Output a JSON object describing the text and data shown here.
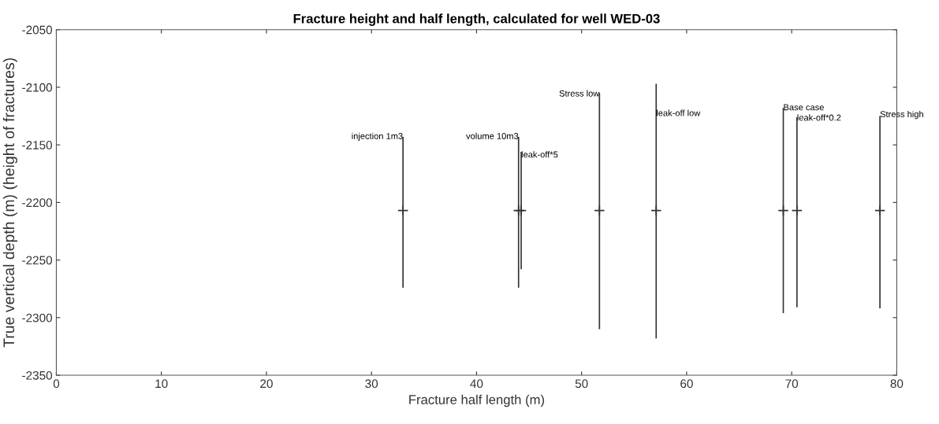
{
  "chart_data": {
    "type": "scatter",
    "title": "Fracture height and half length, calculated for well WED-03",
    "xlabel": "Fracture half length (m)",
    "ylabel": "True vertical depth (m) (height of fractures)",
    "x": [
      33.0,
      44.0,
      44.25,
      51.7,
      57.1,
      69.2,
      70.5,
      78.4
    ],
    "series": [
      {
        "color": "#333333",
        "values": [
          -2207,
          -2207,
          -2207,
          -2207,
          -2207,
          -2207,
          -2207,
          -2207
        ],
        "errors": [
          [
            -2274,
            -2143
          ],
          [
            -2274,
            -2143
          ],
          [
            -2258,
            -2156
          ],
          [
            -2310,
            -2105
          ],
          [
            -2318,
            -2097
          ],
          [
            -2296,
            -2118
          ],
          [
            -2291,
            -2126
          ],
          [
            -2292,
            -2125
          ]
        ]
      }
    ],
    "marker": "cross",
    "xlim": [
      0,
      80
    ],
    "xticks": [
      0,
      10,
      20,
      30,
      40,
      50,
      60,
      70,
      80
    ],
    "ylim": [
      -2350,
      -2050
    ],
    "yticks": [
      -2350,
      -2300,
      -2250,
      -2200,
      -2150,
      -2100,
      -2050
    ],
    "grid": false,
    "annotations": [
      {
        "text": "injection 1m3",
        "x": 33.0,
        "y": -2143
      },
      {
        "text": "volume 10m3",
        "x": 44.0,
        "y": -2143
      },
      {
        "text": "leak-off*5",
        "x": 44.25,
        "y": -2159
      },
      {
        "text": "Stress low",
        "x": 51.7,
        "y": -2106
      },
      {
        "text": "leak-off low",
        "x": 57.1,
        "y": -2123
      },
      {
        "text": "Base case",
        "x": 69.2,
        "y": -2118
      },
      {
        "text": "leak-off*0.2",
        "x": 70.5,
        "y": -2127
      },
      {
        "text": "Stress high",
        "x": 78.4,
        "y": -2124
      }
    ]
  }
}
